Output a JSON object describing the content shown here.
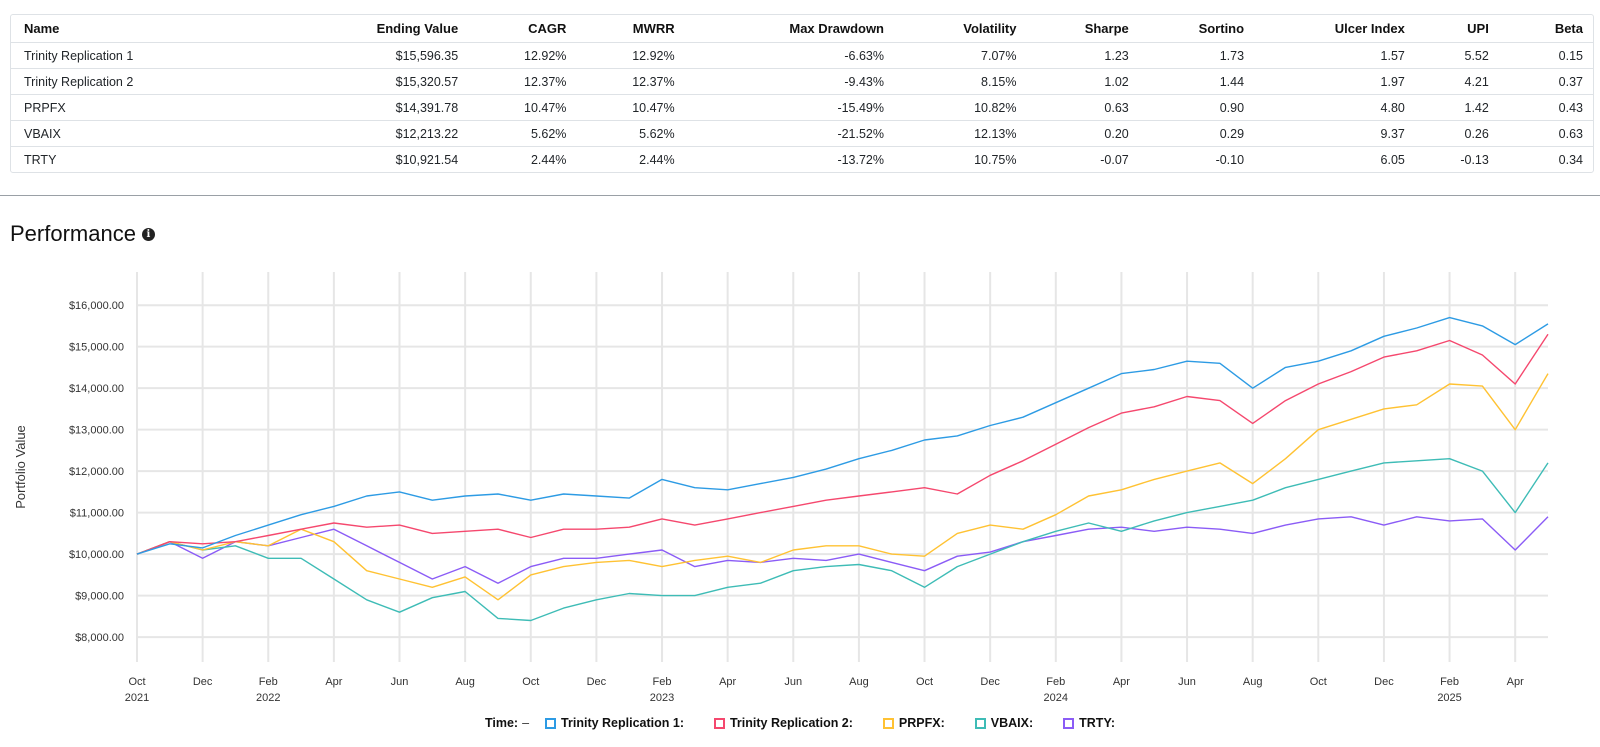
{
  "table": {
    "headers": [
      "Name",
      "Ending Value",
      "CAGR",
      "MWRR",
      "Max Drawdown",
      "Volatility",
      "Sharpe",
      "Sortino",
      "Ulcer Index",
      "UPI",
      "Beta"
    ],
    "rows": [
      [
        "Trinity Replication 1",
        "$15,596.35",
        "12.92%",
        "12.92%",
        "-6.63%",
        "7.07%",
        "1.23",
        "1.73",
        "1.57",
        "5.52",
        "0.15"
      ],
      [
        "Trinity Replication 2",
        "$15,320.57",
        "12.37%",
        "12.37%",
        "-9.43%",
        "8.15%",
        "1.02",
        "1.44",
        "1.97",
        "4.21",
        "0.37"
      ],
      [
        "PRPFX",
        "$14,391.78",
        "10.47%",
        "10.47%",
        "-15.49%",
        "10.82%",
        "0.63",
        "0.90",
        "4.80",
        "1.42",
        "0.43"
      ],
      [
        "VBAIX",
        "$12,213.22",
        "5.62%",
        "5.62%",
        "-21.52%",
        "12.13%",
        "0.20",
        "0.29",
        "9.37",
        "0.26",
        "0.63"
      ],
      [
        "TRTY",
        "$10,921.54",
        "2.44%",
        "2.44%",
        "-13.72%",
        "10.75%",
        "-0.07",
        "-0.10",
        "6.05",
        "-0.13",
        "0.34"
      ]
    ]
  },
  "performance": {
    "title": "Performance",
    "info_icon": "info-circle-icon"
  },
  "legend": {
    "time_label": "Time:",
    "time_value": "–"
  },
  "chart_data": {
    "type": "line",
    "ylabel": "Portfolio Value",
    "ylim": [
      7400,
      16800
    ],
    "yticks": [
      8000,
      9000,
      10000,
      11000,
      12000,
      13000,
      14000,
      15000,
      16000
    ],
    "ytick_labels": [
      "$8,000.00",
      "$9,000.00",
      "$10,000.00",
      "$11,000.00",
      "$12,000.00",
      "$13,000.00",
      "$14,000.00",
      "$15,000.00",
      "$16,000.00"
    ],
    "x_start": "2021-10",
    "x_end": "2025-05",
    "xticks": [
      {
        "date": "2021-10",
        "label": "Oct",
        "year": "2021"
      },
      {
        "date": "2021-12",
        "label": "Dec",
        "year": ""
      },
      {
        "date": "2022-02",
        "label": "Feb",
        "year": "2022"
      },
      {
        "date": "2022-04",
        "label": "Apr",
        "year": ""
      },
      {
        "date": "2022-06",
        "label": "Jun",
        "year": ""
      },
      {
        "date": "2022-08",
        "label": "Aug",
        "year": ""
      },
      {
        "date": "2022-10",
        "label": "Oct",
        "year": ""
      },
      {
        "date": "2022-12",
        "label": "Dec",
        "year": ""
      },
      {
        "date": "2023-02",
        "label": "Feb",
        "year": "2023"
      },
      {
        "date": "2023-04",
        "label": "Apr",
        "year": ""
      },
      {
        "date": "2023-06",
        "label": "Jun",
        "year": ""
      },
      {
        "date": "2023-08",
        "label": "Aug",
        "year": ""
      },
      {
        "date": "2023-10",
        "label": "Oct",
        "year": ""
      },
      {
        "date": "2023-12",
        "label": "Dec",
        "year": ""
      },
      {
        "date": "2024-02",
        "label": "Feb",
        "year": "2024"
      },
      {
        "date": "2024-04",
        "label": "Apr",
        "year": ""
      },
      {
        "date": "2024-06",
        "label": "Jun",
        "year": ""
      },
      {
        "date": "2024-08",
        "label": "Aug",
        "year": ""
      },
      {
        "date": "2024-10",
        "label": "Oct",
        "year": ""
      },
      {
        "date": "2024-12",
        "label": "Dec",
        "year": ""
      },
      {
        "date": "2025-02",
        "label": "Feb",
        "year": "2025"
      },
      {
        "date": "2025-04",
        "label": "Apr",
        "year": ""
      }
    ],
    "grid": true,
    "series": [
      {
        "name": "Trinity Replication 1",
        "legend": "Trinity Replication 1:",
        "color": "#2d9be4",
        "x": [
          "2021-10",
          "2021-11",
          "2021-12",
          "2022-01",
          "2022-02",
          "2022-03",
          "2022-04",
          "2022-05",
          "2022-06",
          "2022-07",
          "2022-08",
          "2022-09",
          "2022-10",
          "2022-11",
          "2022-12",
          "2023-01",
          "2023-02",
          "2023-03",
          "2023-04",
          "2023-05",
          "2023-06",
          "2023-07",
          "2023-08",
          "2023-09",
          "2023-10",
          "2023-11",
          "2023-12",
          "2024-01",
          "2024-02",
          "2024-03",
          "2024-04",
          "2024-05",
          "2024-06",
          "2024-07",
          "2024-08",
          "2024-09",
          "2024-10",
          "2024-11",
          "2024-12",
          "2025-01",
          "2025-02",
          "2025-03",
          "2025-04",
          "2025-05"
        ],
        "values": [
          10000,
          10250,
          10150,
          10450,
          10700,
          10950,
          11150,
          11400,
          11500,
          11300,
          11400,
          11450,
          11300,
          11450,
          11400,
          11350,
          11800,
          11600,
          11550,
          11700,
          11850,
          12050,
          12300,
          12500,
          12750,
          12850,
          13100,
          13300,
          13650,
          14000,
          14350,
          14450,
          14650,
          14600,
          14000,
          14500,
          14650,
          14900,
          15250,
          15450,
          15700,
          15500,
          15050,
          15550
        ]
      },
      {
        "name": "Trinity Replication 2",
        "legend": "Trinity Replication 2:",
        "color": "#f5486e",
        "x": [
          "2021-10",
          "2021-11",
          "2021-12",
          "2022-01",
          "2022-02",
          "2022-03",
          "2022-04",
          "2022-05",
          "2022-06",
          "2022-07",
          "2022-08",
          "2022-09",
          "2022-10",
          "2022-11",
          "2022-12",
          "2023-01",
          "2023-02",
          "2023-03",
          "2023-04",
          "2023-05",
          "2023-06",
          "2023-07",
          "2023-08",
          "2023-09",
          "2023-10",
          "2023-11",
          "2023-12",
          "2024-01",
          "2024-02",
          "2024-03",
          "2024-04",
          "2024-05",
          "2024-06",
          "2024-07",
          "2024-08",
          "2024-09",
          "2024-10",
          "2024-11",
          "2024-12",
          "2025-01",
          "2025-02",
          "2025-03",
          "2025-04",
          "2025-05"
        ],
        "values": [
          10000,
          10300,
          10250,
          10300,
          10450,
          10600,
          10750,
          10650,
          10700,
          10500,
          10550,
          10600,
          10400,
          10600,
          10600,
          10650,
          10850,
          10700,
          10850,
          11000,
          11150,
          11300,
          11400,
          11500,
          11600,
          11450,
          11900,
          12250,
          12650,
          13050,
          13400,
          13550,
          13800,
          13700,
          13150,
          13700,
          14100,
          14400,
          14750,
          14900,
          15150,
          14800,
          14100,
          15300
        ]
      },
      {
        "name": "PRPFX",
        "legend": "PRPFX:",
        "color": "#ffc233",
        "x": [
          "2021-10",
          "2021-11",
          "2021-12",
          "2022-01",
          "2022-02",
          "2022-03",
          "2022-04",
          "2022-05",
          "2022-06",
          "2022-07",
          "2022-08",
          "2022-09",
          "2022-10",
          "2022-11",
          "2022-12",
          "2023-01",
          "2023-02",
          "2023-03",
          "2023-04",
          "2023-05",
          "2023-06",
          "2023-07",
          "2023-08",
          "2023-09",
          "2023-10",
          "2023-11",
          "2023-12",
          "2024-01",
          "2024-02",
          "2024-03",
          "2024-04",
          "2024-05",
          "2024-06",
          "2024-07",
          "2024-08",
          "2024-09",
          "2024-10",
          "2024-11",
          "2024-12",
          "2025-01",
          "2025-02",
          "2025-03",
          "2025-04",
          "2025-05"
        ],
        "values": [
          10000,
          10300,
          10100,
          10300,
          10200,
          10600,
          10300,
          9600,
          9400,
          9200,
          9450,
          8900,
          9500,
          9700,
          9800,
          9850,
          9700,
          9850,
          9950,
          9800,
          10100,
          10200,
          10200,
          10000,
          9950,
          10500,
          10700,
          10600,
          10950,
          11400,
          11550,
          11800,
          12000,
          12200,
          11700,
          12300,
          13000,
          13250,
          13500,
          13600,
          14100,
          14050,
          13000,
          14350
        ]
      },
      {
        "name": "VBAIX",
        "legend": "VBAIX:",
        "color": "#3ebcb6",
        "x": [
          "2021-10",
          "2021-11",
          "2021-12",
          "2022-01",
          "2022-02",
          "2022-03",
          "2022-04",
          "2022-05",
          "2022-06",
          "2022-07",
          "2022-08",
          "2022-09",
          "2022-10",
          "2022-11",
          "2022-12",
          "2023-01",
          "2023-02",
          "2023-03",
          "2023-04",
          "2023-05",
          "2023-06",
          "2023-07",
          "2023-08",
          "2023-09",
          "2023-10",
          "2023-11",
          "2023-12",
          "2024-01",
          "2024-02",
          "2024-03",
          "2024-04",
          "2024-05",
          "2024-06",
          "2024-07",
          "2024-08",
          "2024-09",
          "2024-10",
          "2024-11",
          "2024-12",
          "2025-01",
          "2025-02",
          "2025-03",
          "2025-04",
          "2025-05"
        ],
        "values": [
          10000,
          10300,
          10100,
          10200,
          9900,
          9900,
          9400,
          8900,
          8600,
          8950,
          9100,
          8450,
          8400,
          8700,
          8900,
          9050,
          9000,
          9000,
          9200,
          9300,
          9600,
          9700,
          9750,
          9600,
          9200,
          9700,
          10000,
          10300,
          10550,
          10750,
          10550,
          10800,
          11000,
          11150,
          11300,
          11600,
          11800,
          12000,
          12200,
          12250,
          12300,
          12000,
          11000,
          12200
        ]
      },
      {
        "name": "TRTY",
        "legend": "TRTY:",
        "color": "#8b5cf6",
        "x": [
          "2021-10",
          "2021-11",
          "2021-12",
          "2022-01",
          "2022-02",
          "2022-03",
          "2022-04",
          "2022-05",
          "2022-06",
          "2022-07",
          "2022-08",
          "2022-09",
          "2022-10",
          "2022-11",
          "2022-12",
          "2023-01",
          "2023-02",
          "2023-03",
          "2023-04",
          "2023-05",
          "2023-06",
          "2023-07",
          "2023-08",
          "2023-09",
          "2023-10",
          "2023-11",
          "2023-12",
          "2024-01",
          "2024-02",
          "2024-03",
          "2024-04",
          "2024-05",
          "2024-06",
          "2024-07",
          "2024-08",
          "2024-09",
          "2024-10",
          "2024-11",
          "2024-12",
          "2025-01",
          "2025-02",
          "2025-03",
          "2025-04",
          "2025-05"
        ],
        "values": [
          10000,
          10300,
          9900,
          10300,
          10200,
          10400,
          10600,
          10200,
          9800,
          9400,
          9700,
          9300,
          9700,
          9900,
          9900,
          10000,
          10100,
          9700,
          9850,
          9800,
          9900,
          9850,
          10000,
          9800,
          9600,
          9950,
          10050,
          10300,
          10450,
          10600,
          10650,
          10550,
          10650,
          10600,
          10500,
          10700,
          10850,
          10900,
          10700,
          10900,
          10800,
          10850,
          10100,
          10900
        ]
      }
    ]
  }
}
